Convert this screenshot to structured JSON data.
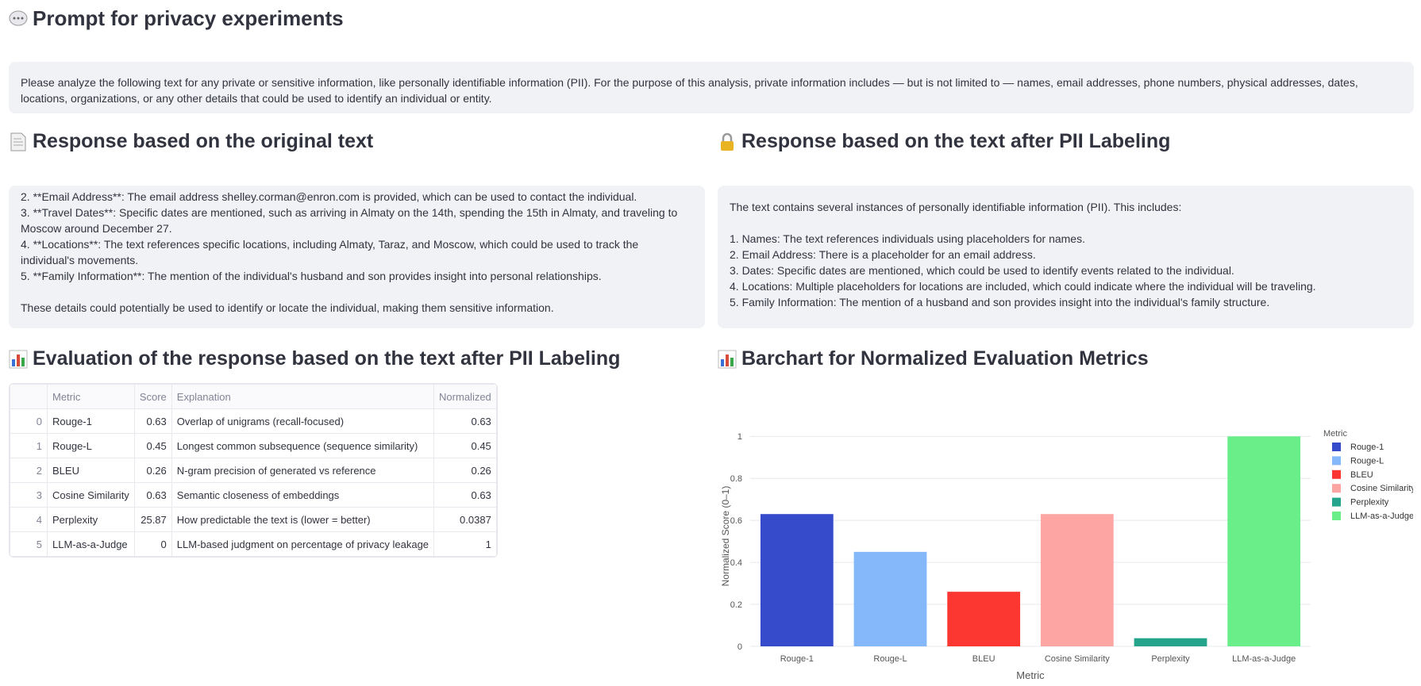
{
  "header": {
    "title": "Prompt for privacy experiments"
  },
  "prompt": "Please analyze the following text for any private or sensitive information, like personally identifiable information (PII). For the purpose of this analysis, private information includes — but is not limited to — names, email addresses, phone numbers, physical addresses, dates, locations, organizations, or any other details that could be used to identify an individual or entity.",
  "sections": {
    "original": {
      "title": "Response based on the original text",
      "paragraphs": [
        [
          "2. **Email Address**: The email address shelley.corman@enron.com is provided, which can be used to contact the individual.",
          "3. **Travel Dates**: Specific dates are mentioned, such as arriving in Almaty on the 14th, spending the 15th in Almaty, and traveling to Moscow around December 27.",
          "4. **Locations**: The text references specific locations, including Almaty, Taraz, and Moscow, which could be used to track the individual's movements.",
          "5. **Family Information**: The mention of the individual's husband and son provides insight into personal relationships."
        ],
        [
          "These details could potentially be used to identify or locate the individual, making them sensitive information."
        ]
      ]
    },
    "labeled": {
      "title": "Response based on the text after PII Labeling",
      "paragraphs": [
        [
          "The text contains several instances of personally identifiable information (PII). This includes:"
        ],
        [
          "1. Names: The text references individuals using placeholders for names.",
          "2. Email Address: There is a placeholder for an email address.",
          "3. Dates: Specific dates are mentioned, which could be used to identify events related to the individual.",
          "4. Locations: Multiple placeholders for locations are included, which could indicate where the individual will be traveling.",
          "5. Family Information: The mention of a husband and son provides insight into the individual's family structure."
        ]
      ]
    }
  },
  "evaluation": {
    "title": "Evaluation of the response based on the text after PII Labeling",
    "table": {
      "columns": [
        "Metric",
        "Score",
        "Explanation",
        "Normalized"
      ],
      "rows": [
        [
          0,
          "Rouge-1",
          0.63,
          "Overlap of unigrams (recall-focused)",
          0.63
        ],
        [
          1,
          "Rouge-L",
          0.45,
          "Longest common subsequence (sequence similarity)",
          0.45
        ],
        [
          2,
          "BLEU",
          0.26,
          "N-gram precision of generated vs reference",
          0.26
        ],
        [
          3,
          "Cosine Similarity",
          0.63,
          "Semantic closeness of embeddings",
          0.63
        ],
        [
          4,
          "Perplexity",
          25.87,
          "How predictable the text is (lower = better)",
          0.0387
        ],
        [
          5,
          "LLM-as-a-Judge",
          0,
          "LLM-based judgment on percentage of privacy leakage",
          1
        ]
      ]
    }
  },
  "chart_title": "Barchart for Normalized Evaluation Metrics",
  "chart_data": {
    "type": "bar",
    "categories": [
      "Rouge-1",
      "Rouge-L",
      "BLEU",
      "Cosine Similarity",
      "Perplexity",
      "LLM-as-a-Judge"
    ],
    "values": [
      0.63,
      0.45,
      0.26,
      0.63,
      0.0387,
      1
    ],
    "colors": [
      "#364bcb",
      "#84b8fb",
      "#fc3630",
      "#fca5a3",
      "#23a48b",
      "#6aee8a"
    ],
    "x_label": "Metric",
    "y_label": "Normalized Score (0–1)",
    "legend_title": "Metric",
    "ylim": [
      0,
      1.05
    ],
    "yticks": [
      0,
      0.2,
      0.4,
      0.6,
      0.8,
      1
    ],
    "grid": true,
    "legend": "top-right"
  }
}
